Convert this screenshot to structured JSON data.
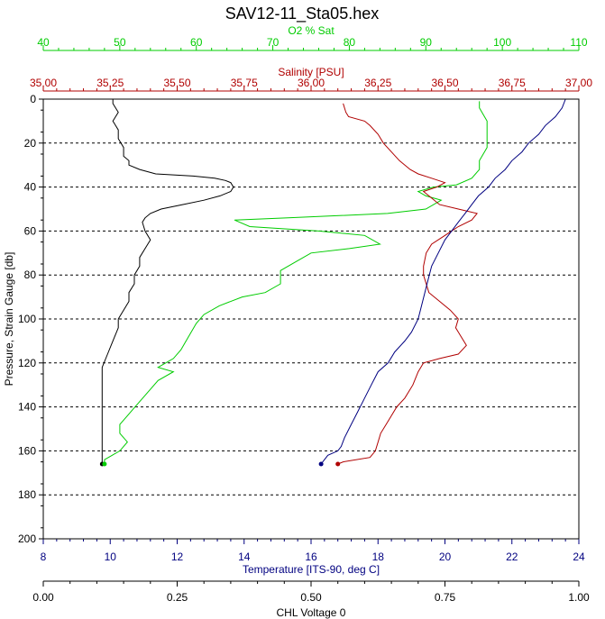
{
  "chart_data": {
    "type": "line",
    "title": "SAV12-11_Sta05.hex",
    "grid": "horizontal-dashed",
    "y_axis": {
      "label": "Pressure, Strain Gauge [db]",
      "range": [
        0,
        200
      ],
      "inverted": true,
      "ticks": [
        "0",
        "20",
        "40",
        "60",
        "80",
        "100",
        "120",
        "140",
        "160",
        "180",
        "200"
      ]
    },
    "x_axes": [
      {
        "id": "o2",
        "label": "O2 % Sat",
        "position": "top",
        "color": "#00cc00",
        "range": [
          40,
          110
        ],
        "ticks": [
          "40",
          "50",
          "60",
          "70",
          "80",
          "90",
          "100",
          "110"
        ]
      },
      {
        "id": "salinity",
        "label": "Salinity [PSU]",
        "position": "top",
        "color": "#b00000",
        "range": [
          35.0,
          37.0
        ],
        "ticks": [
          "35,00",
          "35,25",
          "35,50",
          "35,75",
          "36,00",
          "36,25",
          "36,50",
          "36,75",
          "37,00"
        ]
      },
      {
        "id": "temperature",
        "label": "Temperature [ITS-90, deg C]",
        "position": "bottom",
        "color": "#000080",
        "range": [
          8,
          24
        ],
        "ticks": [
          "8",
          "10",
          "12",
          "14",
          "16",
          "18",
          "20",
          "22",
          "24"
        ]
      },
      {
        "id": "chl",
        "label": "CHL Voltage 0",
        "position": "bottom",
        "color": "#000000",
        "range": [
          0.0,
          1.0
        ],
        "ticks": [
          "0.00",
          "0.25",
          "0.50",
          "0.75",
          "1.00"
        ]
      }
    ],
    "series": [
      {
        "axis": "chl",
        "color": "#000000",
        "points": [
          [
            0.13,
            0
          ],
          [
            0.13,
            2
          ],
          [
            0.14,
            6
          ],
          [
            0.13,
            10
          ],
          [
            0.14,
            14
          ],
          [
            0.14,
            18
          ],
          [
            0.15,
            22
          ],
          [
            0.15,
            26
          ],
          [
            0.16,
            28
          ],
          [
            0.16,
            30
          ],
          [
            0.18,
            32
          ],
          [
            0.21,
            34
          ],
          [
            0.28,
            35
          ],
          [
            0.32,
            36
          ],
          [
            0.34,
            37
          ],
          [
            0.35,
            38
          ],
          [
            0.355,
            40
          ],
          [
            0.35,
            42
          ],
          [
            0.33,
            44
          ],
          [
            0.3,
            46
          ],
          [
            0.26,
            48
          ],
          [
            0.22,
            50
          ],
          [
            0.2,
            52
          ],
          [
            0.19,
            54
          ],
          [
            0.185,
            56
          ],
          [
            0.19,
            60
          ],
          [
            0.2,
            64
          ],
          [
            0.19,
            68
          ],
          [
            0.18,
            72
          ],
          [
            0.18,
            76
          ],
          [
            0.17,
            80
          ],
          [
            0.17,
            84
          ],
          [
            0.16,
            88
          ],
          [
            0.16,
            92
          ],
          [
            0.15,
            96
          ],
          [
            0.14,
            100
          ],
          [
            0.14,
            104
          ],
          [
            0.13,
            110
          ],
          [
            0.12,
            116
          ],
          [
            0.11,
            122
          ],
          [
            0.11,
            128
          ],
          [
            0.11,
            134
          ],
          [
            0.11,
            140
          ],
          [
            0.11,
            146
          ],
          [
            0.11,
            152
          ],
          [
            0.11,
            158
          ],
          [
            0.11,
            162
          ],
          [
            0.11,
            166
          ]
        ]
      },
      {
        "axis": "o2",
        "color": "#00cc00",
        "points": [
          [
            97,
            1
          ],
          [
            97,
            4
          ],
          [
            98,
            10
          ],
          [
            98,
            16
          ],
          [
            98,
            22
          ],
          [
            97,
            28
          ],
          [
            97,
            32
          ],
          [
            96,
            36
          ],
          [
            94,
            39
          ],
          [
            91,
            40
          ],
          [
            89,
            42
          ],
          [
            90,
            44
          ],
          [
            92,
            46
          ],
          [
            90,
            50
          ],
          [
            85,
            52
          ],
          [
            72,
            54
          ],
          [
            65,
            55
          ],
          [
            67,
            58
          ],
          [
            76,
            60
          ],
          [
            82,
            62
          ],
          [
            84,
            66
          ],
          [
            80,
            68
          ],
          [
            75,
            70
          ],
          [
            73,
            74
          ],
          [
            71,
            78
          ],
          [
            71,
            84
          ],
          [
            69,
            88
          ],
          [
            66,
            90
          ],
          [
            63,
            94
          ],
          [
            61,
            98
          ],
          [
            60,
            102
          ],
          [
            59,
            108
          ],
          [
            58,
            114
          ],
          [
            57,
            118
          ],
          [
            56,
            120
          ],
          [
            55,
            122
          ],
          [
            57,
            124
          ],
          [
            55,
            128
          ],
          [
            54,
            132
          ],
          [
            53,
            136
          ],
          [
            52,
            140
          ],
          [
            51,
            144
          ],
          [
            50,
            148
          ],
          [
            50,
            152
          ],
          [
            51,
            156
          ],
          [
            50,
            160
          ],
          [
            49,
            162
          ],
          [
            48,
            164
          ],
          [
            48,
            166
          ]
        ]
      },
      {
        "axis": "salinity",
        "color": "#b00000",
        "points": [
          [
            36.12,
            2
          ],
          [
            36.13,
            6
          ],
          [
            36.14,
            8
          ],
          [
            36.2,
            10
          ],
          [
            36.22,
            12
          ],
          [
            36.25,
            16
          ],
          [
            36.27,
            20
          ],
          [
            36.3,
            24
          ],
          [
            36.33,
            28
          ],
          [
            36.37,
            32
          ],
          [
            36.4,
            34
          ],
          [
            36.45,
            36
          ],
          [
            36.5,
            38
          ],
          [
            36.47,
            40
          ],
          [
            36.42,
            42
          ],
          [
            36.44,
            44
          ],
          [
            36.48,
            48
          ],
          [
            36.55,
            50
          ],
          [
            36.62,
            52
          ],
          [
            36.6,
            55
          ],
          [
            36.55,
            58
          ],
          [
            36.5,
            62
          ],
          [
            36.45,
            66
          ],
          [
            36.43,
            70
          ],
          [
            36.42,
            76
          ],
          [
            36.42,
            80
          ],
          [
            36.43,
            84
          ],
          [
            36.44,
            88
          ],
          [
            36.48,
            92
          ],
          [
            36.52,
            96
          ],
          [
            36.55,
            100
          ],
          [
            36.54,
            104
          ],
          [
            36.56,
            108
          ],
          [
            36.58,
            112
          ],
          [
            36.55,
            116
          ],
          [
            36.48,
            118
          ],
          [
            36.42,
            120
          ],
          [
            36.4,
            124
          ],
          [
            36.38,
            130
          ],
          [
            36.35,
            136
          ],
          [
            36.32,
            140
          ],
          [
            36.3,
            144
          ],
          [
            36.28,
            148
          ],
          [
            36.26,
            152
          ],
          [
            36.25,
            156
          ],
          [
            36.24,
            160
          ],
          [
            36.22,
            163
          ],
          [
            36.12,
            165
          ],
          [
            36.1,
            166
          ]
        ]
      },
      {
        "axis": "temperature",
        "color": "#000080",
        "points": [
          [
            23.6,
            0
          ],
          [
            23.5,
            4
          ],
          [
            23.3,
            8
          ],
          [
            23.0,
            12
          ],
          [
            22.8,
            16
          ],
          [
            22.5,
            20
          ],
          [
            22.3,
            24
          ],
          [
            22.0,
            28
          ],
          [
            21.8,
            32
          ],
          [
            21.5,
            36
          ],
          [
            21.3,
            40
          ],
          [
            21.0,
            44
          ],
          [
            20.8,
            48
          ],
          [
            20.6,
            52
          ],
          [
            20.4,
            56
          ],
          [
            20.2,
            60
          ],
          [
            20.0,
            64
          ],
          [
            19.8,
            70
          ],
          [
            19.6,
            76
          ],
          [
            19.5,
            82
          ],
          [
            19.4,
            88
          ],
          [
            19.3,
            94
          ],
          [
            19.2,
            100
          ],
          [
            19.0,
            106
          ],
          [
            18.8,
            110
          ],
          [
            18.5,
            115
          ],
          [
            18.3,
            120
          ],
          [
            18.0,
            124
          ],
          [
            17.8,
            130
          ],
          [
            17.6,
            136
          ],
          [
            17.4,
            142
          ],
          [
            17.2,
            148
          ],
          [
            17.0,
            154
          ],
          [
            16.9,
            158
          ],
          [
            16.8,
            160
          ],
          [
            16.5,
            162
          ],
          [
            16.4,
            164
          ],
          [
            16.3,
            166
          ]
        ]
      }
    ]
  }
}
